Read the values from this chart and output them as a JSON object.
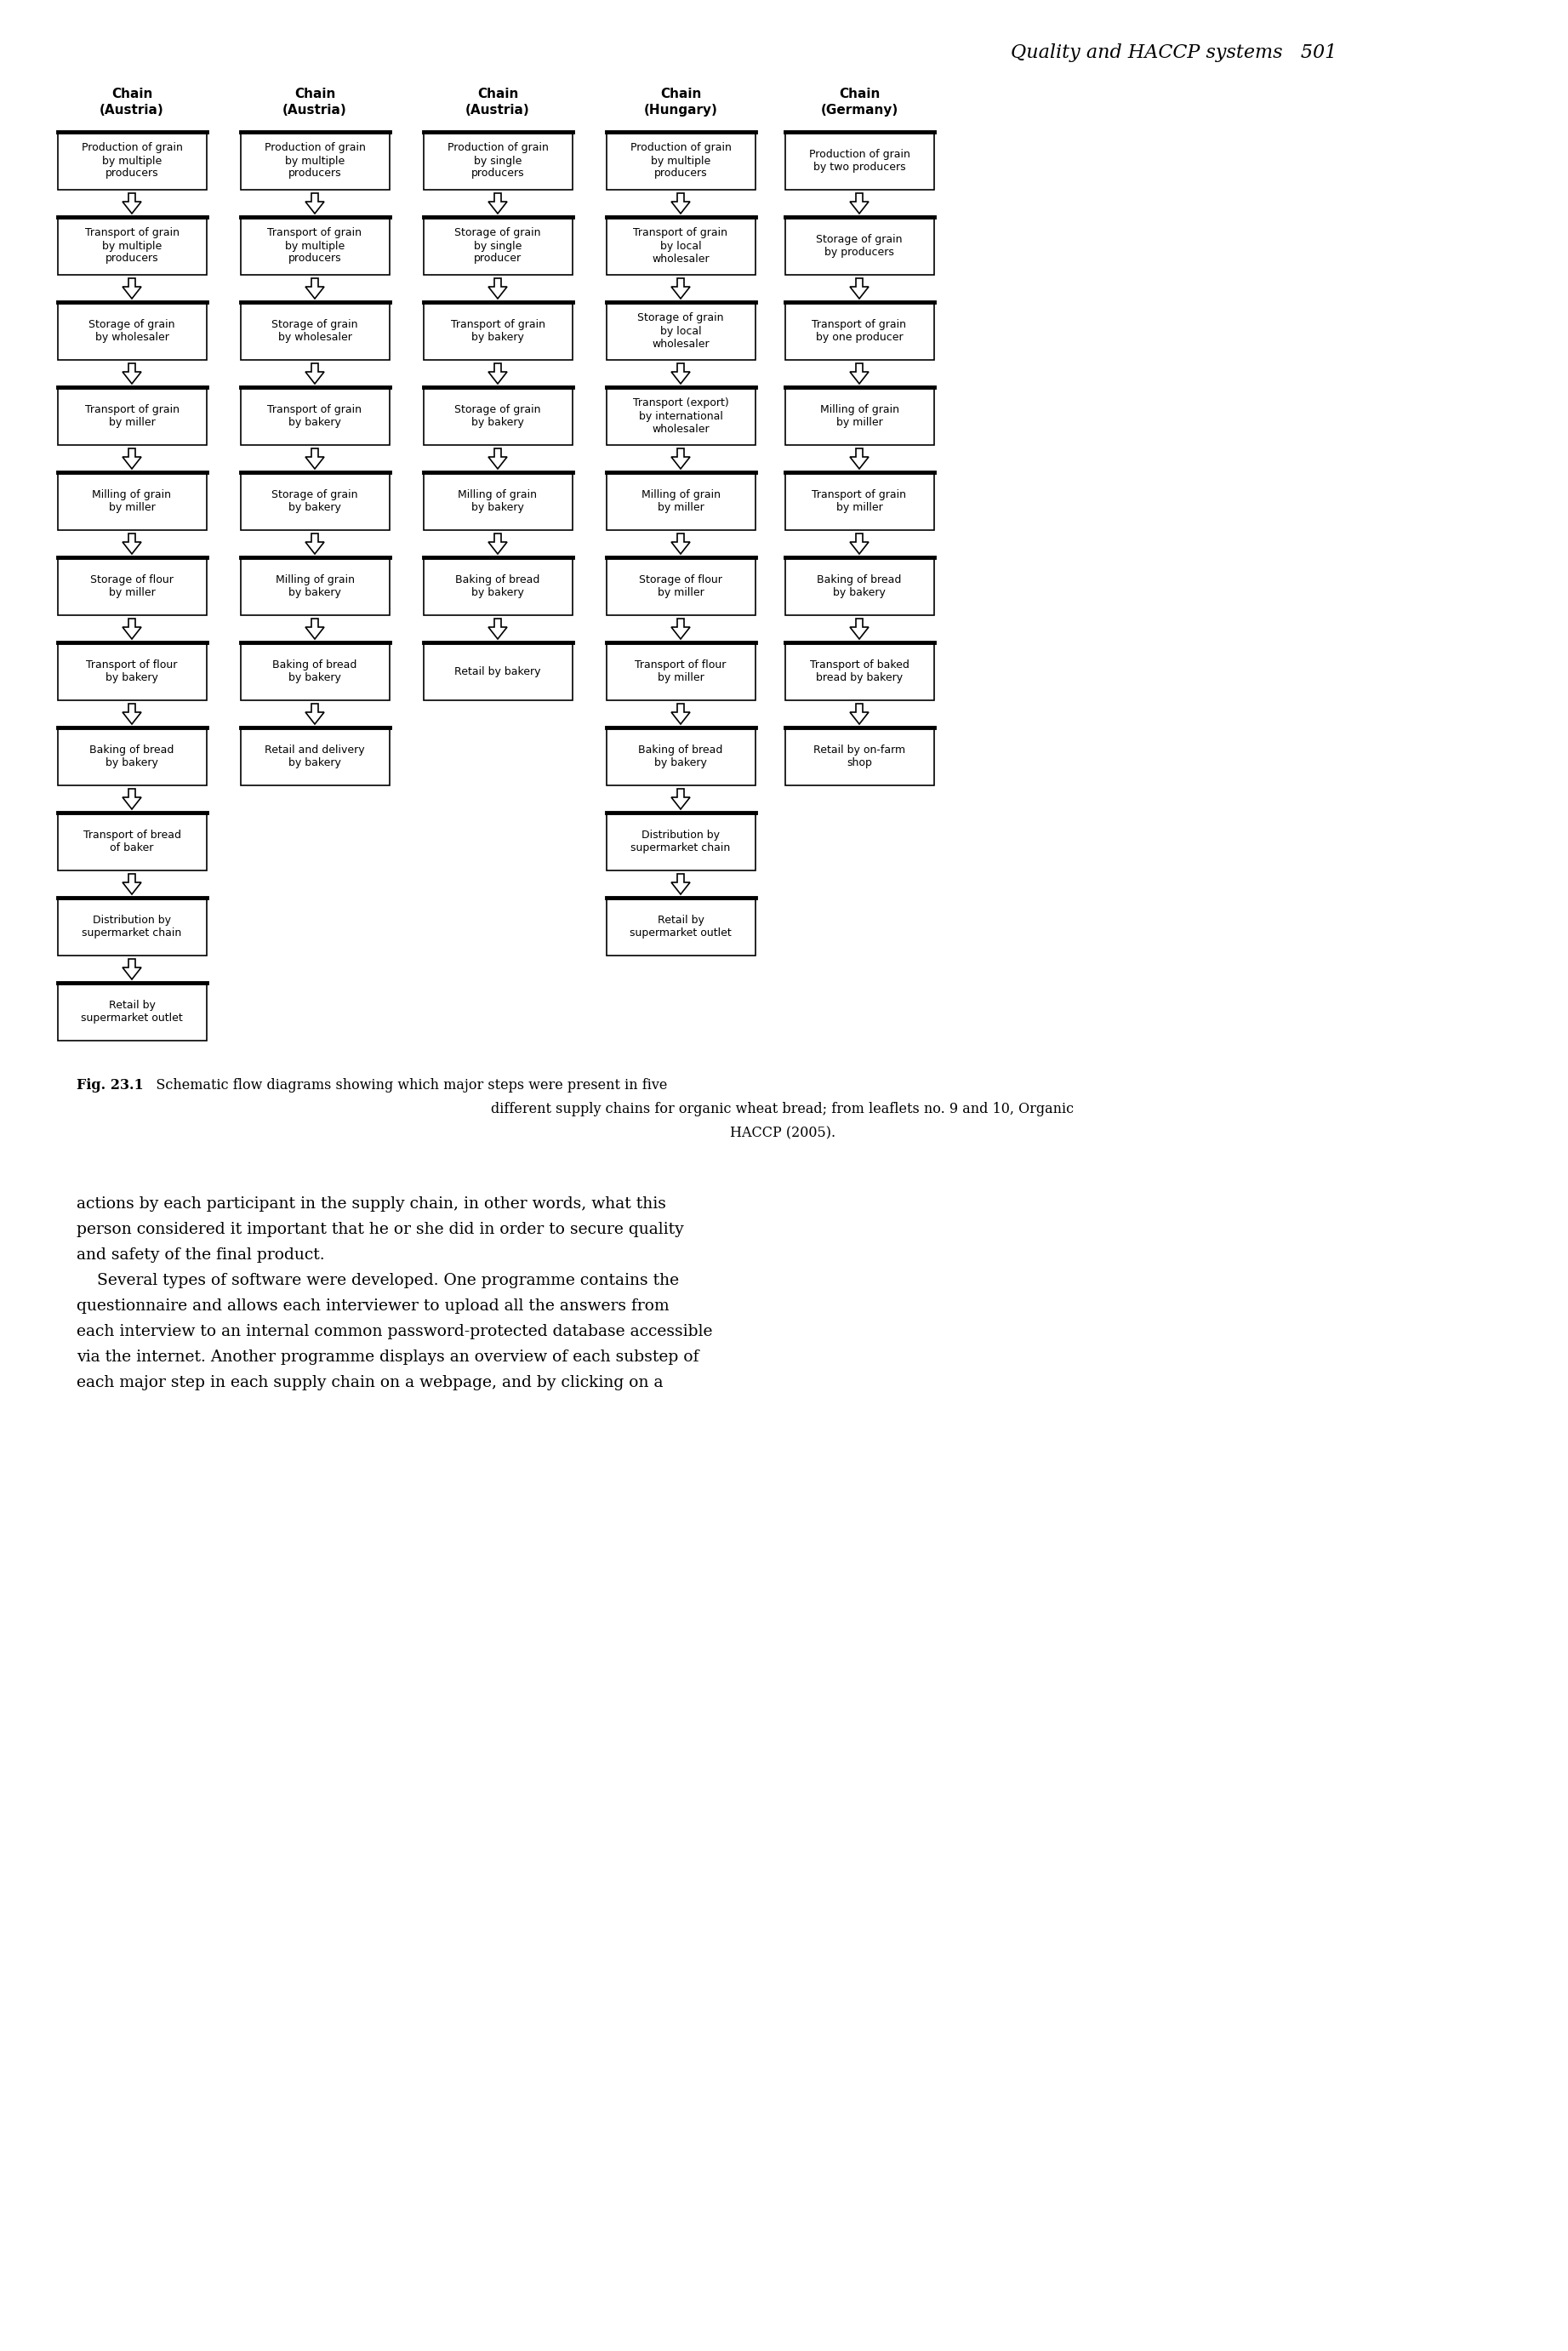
{
  "page_header": "Quality and HACCP systems   501",
  "chains": [
    {
      "title": "Chain\n(Austria)",
      "steps": [
        "Production of grain\nby multiple\nproducers",
        "Transport of grain\nby multiple\nproducers",
        "Storage of grain\nby wholesaler",
        "Transport of grain\nby miller",
        "Milling of grain\nby miller",
        "Storage of flour\nby miller",
        "Transport of flour\nby bakery",
        "Baking of bread\nby bakery",
        "Transport of bread\nof baker",
        "Distribution by\nsupermarket chain",
        "Retail by\nsupermarket outlet"
      ]
    },
    {
      "title": "Chain\n(Austria)",
      "steps": [
        "Production of grain\nby multiple\nproducers",
        "Transport of grain\nby multiple\nproducers",
        "Storage of grain\nby wholesaler",
        "Transport of grain\nby bakery",
        "Storage of grain\nby bakery",
        "Milling of grain\nby bakery",
        "Baking of bread\nby bakery",
        "Retail and delivery\nby bakery"
      ]
    },
    {
      "title": "Chain\n(Austria)",
      "steps": [
        "Production of grain\nby single\nproducers",
        "Storage of grain\nby single\nproducer",
        "Transport of grain\nby bakery",
        "Storage of grain\nby bakery",
        "Milling of grain\nby bakery",
        "Baking of bread\nby bakery",
        "Retail by bakery"
      ]
    },
    {
      "title": "Chain\n(Hungary)",
      "steps": [
        "Production of grain\nby multiple\nproducers",
        "Transport of grain\nby local\nwholesaler",
        "Storage of grain\nby local\nwholesaler",
        "Transport (export)\nby international\nwholesaler",
        "Milling of grain\nby miller",
        "Storage of flour\nby miller",
        "Transport of flour\nby miller",
        "Baking of bread\nby bakery",
        "Distribution by\nsupermarket chain",
        "Retail by\nsupermarket outlet"
      ]
    },
    {
      "title": "Chain\n(Germany)",
      "steps": [
        "Production of grain\nby two producers",
        "Storage of grain\nby producers",
        "Transport of grain\nby one producer",
        "Milling of grain\nby miller",
        "Transport of grain\nby miller",
        "Baking of bread\nby bakery",
        "Transport of baked\nbread by bakery",
        "Retail by on-farm\nshop"
      ]
    }
  ],
  "caption_bold": "Fig. 23.1",
  "caption_rest": "   Schematic flow diagrams showing which major steps were present in five\ndifferent supply chains for organic wheat bread; from leaflets no. 9 and 10, Organic\nHACCP (2005).",
  "body_lines": [
    "actions by each participant in the supply chain, in other words, what this",
    "person considered it important that he or she did in order to secure quality",
    "and safety of the final product.",
    "    Several types of software were developed. One programme contains the",
    "questionnaire and allows each interviewer to upload all the answers from",
    "each interview to an internal common password-protected database accessible",
    "via the internet. Another programme displays an overview of each substep of",
    "each major step in each supply chain on a webpage, and by clicking on a"
  ]
}
